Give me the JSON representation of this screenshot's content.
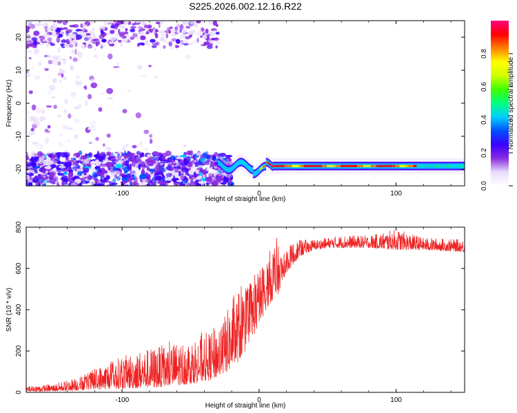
{
  "title": "S225.2026.002.12.16.R22",
  "chart_data": [
    {
      "type": "heatmap",
      "xlabel": "Height of straight line (km)",
      "ylabel": "Frequency (Hz)",
      "xlim": [
        -170,
        150
      ],
      "ylim": [
        -25,
        25
      ],
      "x_ticks": [
        -100,
        0,
        100
      ],
      "y_ticks": [
        -20,
        -10,
        0,
        10,
        20
      ],
      "colorbar": {
        "label": "Normalized spectral amplitude",
        "range": [
          0,
          1
        ],
        "ticks": [
          0.0,
          0.2,
          0.4,
          0.6,
          0.8
        ],
        "colormap": [
          "#ffffff",
          "#e8dcfb",
          "#8a2be2",
          "#3a00ff",
          "#0050ff",
          "#00d0ff",
          "#00ff80",
          "#40ff00",
          "#d0ff00",
          "#ffff00",
          "#ff8000",
          "#ff0000",
          "#ff0080"
        ]
      },
      "features": {
        "signal_line_freq_hz": -19,
        "signal_start_x": -30,
        "signal_peak_color_range_x": [
          0,
          115
        ],
        "noise_region_x": [
          -170,
          -25
        ]
      },
      "grid": false
    },
    {
      "type": "line",
      "xlabel": "Height of straight line (km)",
      "ylabel": "SNR (10 * v/v)",
      "xlim": [
        -170,
        150
      ],
      "ylim": [
        0,
        800
      ],
      "x_ticks": [
        -100,
        0,
        100
      ],
      "y_ticks": [
        0,
        200,
        400,
        600,
        800
      ],
      "line_color": "#ee2222",
      "envelope": {
        "x": [
          -170,
          -150,
          -130,
          -110,
          -90,
          -70,
          -50,
          -35,
          -25,
          -15,
          -10,
          -5,
          0,
          5,
          10,
          12,
          15,
          20,
          25,
          30,
          40,
          50,
          60,
          80,
          100,
          120,
          150
        ],
        "lower": [
          5,
          5,
          10,
          15,
          20,
          25,
          40,
          60,
          90,
          150,
          200,
          260,
          330,
          400,
          450,
          430,
          500,
          580,
          620,
          660,
          690,
          700,
          700,
          700,
          690,
          690,
          680
        ],
        "upper": [
          30,
          40,
          80,
          150,
          200,
          230,
          260,
          300,
          380,
          500,
          520,
          560,
          600,
          650,
          720,
          780,
          680,
          700,
          730,
          740,
          740,
          750,
          760,
          760,
          790,
          750,
          740
        ]
      },
      "grid": false
    }
  ]
}
